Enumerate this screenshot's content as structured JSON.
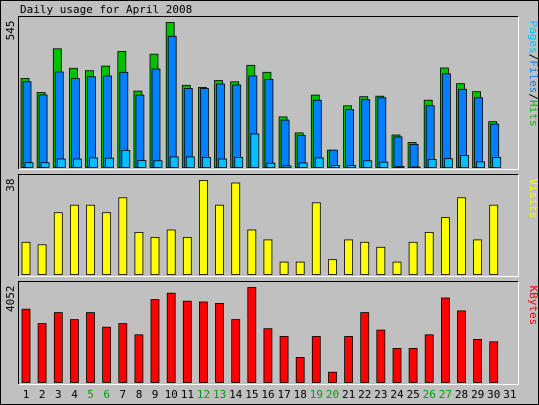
{
  "chart_data": {
    "type": "bar",
    "title": "Daily usage for April 2008",
    "days": [
      "1",
      "2",
      "3",
      "4",
      "5",
      "6",
      "7",
      "8",
      "9",
      "10",
      "11",
      "12",
      "13",
      "14",
      "15",
      "16",
      "17",
      "18",
      "19",
      "20",
      "21",
      "22",
      "23",
      "24",
      "25",
      "26",
      "27",
      "28",
      "29",
      "30",
      "31"
    ],
    "weekend_days": [
      "5",
      "6",
      "12",
      "13",
      "19",
      "20",
      "26",
      "27"
    ],
    "colors": {
      "background": "#c0c0c0",
      "title": "#000000",
      "weekday_label": "#000000",
      "weekend_label": "#00a000",
      "hits": "#00c000",
      "files": "#0080ff",
      "pages": "#00c0ff",
      "visits": "#ffff00",
      "kbytes": "#ff0000"
    },
    "panels": [
      {
        "id": "hits-panel",
        "max_label": "545",
        "ymax": 545,
        "legend": [
          {
            "text": "Pages",
            "color": "#00c0ff"
          },
          {
            "text": "/",
            "color": "#000000"
          },
          {
            "text": "Files",
            "color": "#0080ff"
          },
          {
            "text": "/",
            "color": "#000000"
          },
          {
            "text": "Hits",
            "color": "#00c000"
          }
        ],
        "series": [
          {
            "name": "Hits",
            "color": "#00c000",
            "values": [
              335,
              282,
              446,
              373,
              364,
              381,
              436,
              287,
              426,
              545,
              309,
              301,
              327,
              322,
              384,
              358,
              190,
              130,
              272,
              65,
              232,
              266,
              268,
              122,
              94,
              253,
              374,
              315,
              285,
              172,
              0
            ]
          },
          {
            "name": "Files",
            "color": "#0080ff",
            "values": [
              322,
              273,
              359,
              334,
              341,
              344,
              358,
              272,
              370,
              493,
              297,
              297,
              314,
              310,
              344,
              331,
              178,
              121,
              253,
              65,
              218,
              255,
              262,
              115,
              87,
              232,
              352,
              294,
              262,
              163,
              0
            ]
          },
          {
            "name": "Pages",
            "color": "#00c0ff",
            "values": [
              18,
              18,
              32,
              32,
              36,
              35,
              64,
              26,
              25,
              40,
              40,
              38,
              32,
              38,
              126,
              16,
              6,
              17,
              36,
              8,
              7,
              25,
              20,
              4,
              2,
              30,
              33,
              45,
              21,
              38,
              0
            ]
          }
        ]
      },
      {
        "id": "visits-panel",
        "max_label": "38",
        "ymax": 38,
        "legend": [
          {
            "text": "Visits",
            "color": "#ffff00"
          }
        ],
        "series": [
          {
            "name": "Visits",
            "color": "#ffff00",
            "values": [
              13,
              12,
              25,
              28,
              28,
              25,
              31,
              17,
              15,
              18,
              15,
              38,
              28,
              37,
              18,
              14,
              5,
              5,
              29,
              6,
              14,
              13,
              11,
              5,
              13,
              17,
              23,
              31,
              14,
              28,
              0
            ]
          }
        ]
      },
      {
        "id": "kbytes-panel",
        "max_label": "4052",
        "ymax": 4052,
        "legend": [
          {
            "text": "KBytes",
            "color": "#ff0000"
          }
        ],
        "series": [
          {
            "name": "KBytes",
            "color": "#ff0000",
            "values": [
              3128,
              2513,
              2983,
              2681,
              2983,
              2358,
              2513,
              2033,
              3538,
              3811,
              3468,
              3433,
              3373,
              2681,
              4052,
              2293,
              1968,
              1072,
              1968,
              441,
              1968,
              2983,
              2233,
              1453,
              1453,
              2033,
              3603,
              3053,
              1838,
              1738,
              0
            ]
          }
        ]
      }
    ]
  }
}
